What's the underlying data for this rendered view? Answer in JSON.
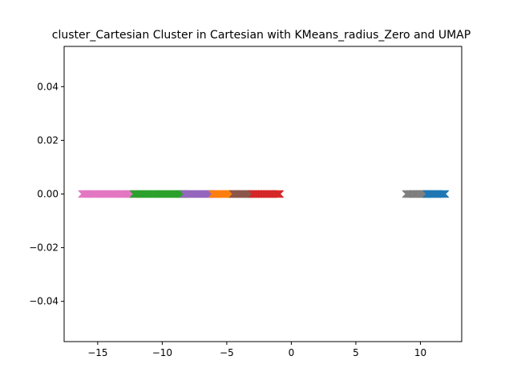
{
  "chart_data": {
    "type": "scatter",
    "title": "cluster_Cartesian Cluster in Cartesian with KMeans_radius_Zero and UMAP",
    "xlabel": "",
    "ylabel": "",
    "xlim": [
      -17.6,
      13.2
    ],
    "ylim": [
      -0.055,
      0.055
    ],
    "x_ticks": [
      -15,
      -10,
      -5,
      0,
      5,
      10
    ],
    "x_tick_labels": [
      "−15",
      "−10",
      "−5",
      "0",
      "5",
      "10"
    ],
    "y_ticks": [
      -0.04,
      -0.02,
      0.0,
      0.02,
      0.04
    ],
    "y_tick_labels": [
      "−0.04",
      "−0.02",
      "0.00",
      "0.02",
      "0.04"
    ],
    "grid": false,
    "marker": "x",
    "series": [
      {
        "color": "#e377c2",
        "x_range": [
          -16.2,
          -12.3
        ],
        "y": 0
      },
      {
        "color": "#2ca02c",
        "x_range": [
          -12.2,
          -8.4
        ],
        "y": 0
      },
      {
        "color": "#9467bd",
        "x_range": [
          -8.3,
          -6.2
        ],
        "y": 0
      },
      {
        "color": "#ff7f0e",
        "x_range": [
          -6.1,
          -4.6
        ],
        "y": 0
      },
      {
        "color": "#8c564b",
        "x_range": [
          -4.5,
          -3.0
        ],
        "y": 0
      },
      {
        "color": "#d62728",
        "x_range": [
          -3.0,
          -0.9
        ],
        "y": 0
      },
      {
        "color": "#7f7f7f",
        "x_range": [
          8.9,
          10.4
        ],
        "y": 0
      },
      {
        "color": "#1f77b4",
        "x_range": [
          10.5,
          11.9
        ],
        "y": 0
      }
    ]
  }
}
